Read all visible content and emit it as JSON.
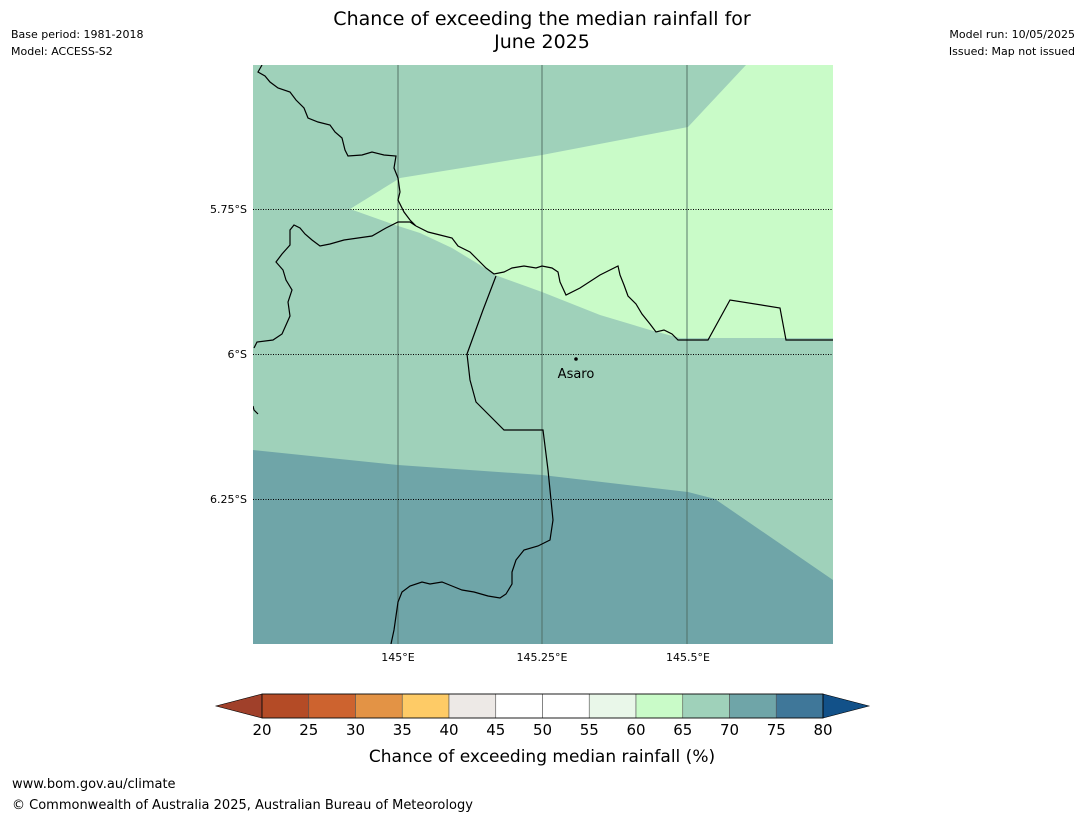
{
  "title_line1": "Chance of exceeding the median rainfall for",
  "title_line2": "June 2025",
  "meta_left": {
    "base_period": "Base period: 1981-2018",
    "model": "Model: ACCESS-S2"
  },
  "meta_right": {
    "model_run": "Model run: 10/05/2025",
    "issued": "Issued: Map not issued"
  },
  "map": {
    "lat_labels": [
      "5.75°S",
      "6°S",
      "6.25°S"
    ],
    "lon_labels": [
      "145°E",
      "145.25°E",
      "145.5°E"
    ],
    "place_label": "Asaro",
    "region_colors": {
      "band_55_60": "#eaf6e9",
      "band_60_65": "#c9fbc8",
      "band_65_70": "#9fd1ba",
      "band_70_75": "#6fa5a8"
    }
  },
  "legend": {
    "ticks": [
      "20",
      "25",
      "30",
      "35",
      "40",
      "45",
      "50",
      "55",
      "60",
      "65",
      "70",
      "75",
      "80"
    ],
    "colors": [
      "#a0402a",
      "#b44b26",
      "#cd632f",
      "#e39345",
      "#fecb66",
      "#ede9e6",
      "#ffffff",
      "#ffffff",
      "#e9f7e9",
      "#c9fbc8",
      "#9fd1ba",
      "#6fa5a8",
      "#3f7799",
      "#125189"
    ],
    "label": "Chance of exceeding median rainfall (%)"
  },
  "footer": {
    "url": "www.bom.gov.au/climate",
    "copyright": "© Commonwealth of Australia 2025, Australian Bureau of Meteorology"
  }
}
